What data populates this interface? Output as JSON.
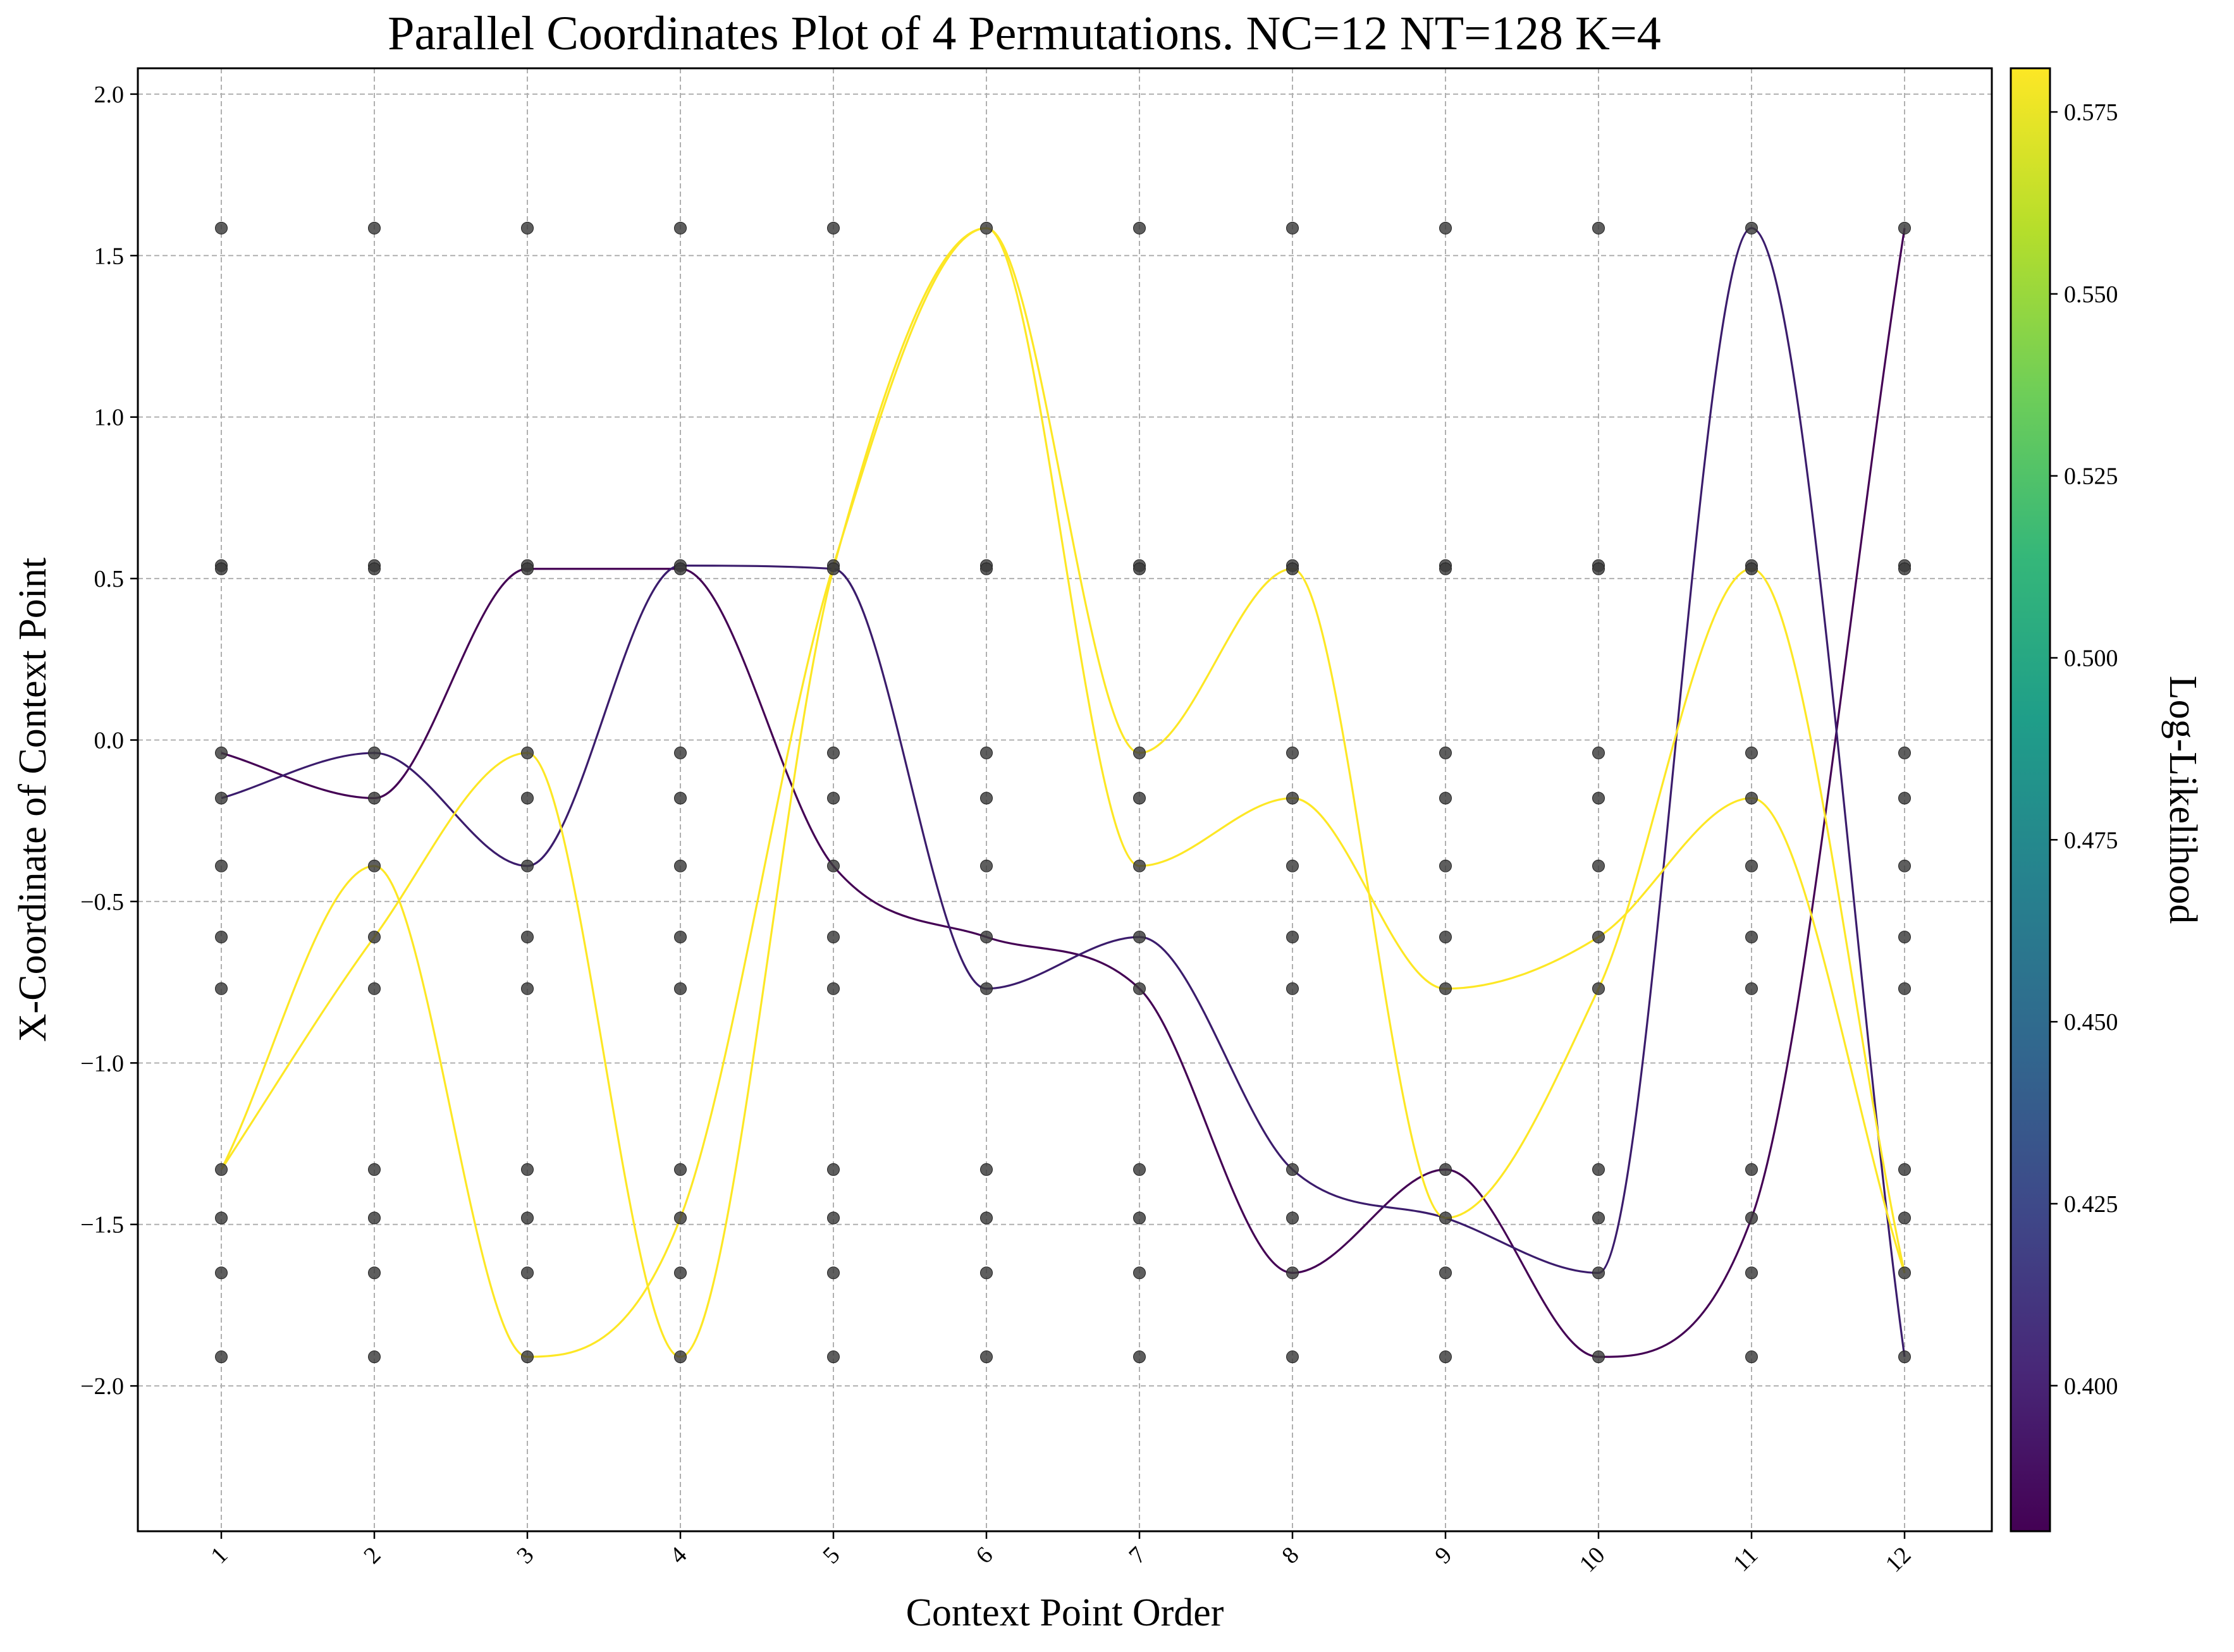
{
  "chart_data": {
    "type": "line",
    "title": "Parallel Coordinates Plot of 4 Permutations. NC=12 NT=128 K=4",
    "xlabel": "Context Point Order",
    "ylabel": "X-Coordinate of Context Point",
    "x_ticks": [
      "1",
      "2",
      "3",
      "4",
      "5",
      "6",
      "7",
      "8",
      "9",
      "10",
      "11",
      "12"
    ],
    "y_ticks": [
      "2.0",
      "1.5",
      "1.0",
      "0.5",
      "0.0",
      "−0.5",
      "−1.0",
      "−1.5",
      "−2.0"
    ],
    "y_tick_values": [
      2.0,
      1.5,
      1.0,
      0.5,
      0.0,
      -0.5,
      -1.0,
      -1.5,
      -2.0
    ],
    "ylim": [
      -2.45,
      2.08
    ],
    "grid": true,
    "context_points": [
      1.585,
      0.54,
      0.53,
      -0.04,
      -0.18,
      -0.39,
      -0.61,
      -0.77,
      -1.33,
      -1.48,
      -1.65,
      -1.91
    ],
    "colorbar": {
      "label": "Log-Likelihood",
      "range": [
        0.38,
        0.581
      ],
      "ticks": [
        "0.575",
        "0.550",
        "0.525",
        "0.500",
        "0.475",
        "0.450",
        "0.425",
        "0.400"
      ],
      "tick_values": [
        0.575,
        0.55,
        0.525,
        0.5,
        0.475,
        0.45,
        0.425,
        0.4
      ],
      "colormap": [
        "#440154",
        "#482878",
        "#3e4989",
        "#31688e",
        "#26828e",
        "#1f9e89",
        "#35b779",
        "#6ece58",
        "#b5de2b",
        "#fde725"
      ]
    },
    "series": [
      {
        "log_likelihood": 0.381,
        "color": "#440154",
        "values": [
          -0.04,
          -0.18,
          0.53,
          0.53,
          -0.39,
          -0.61,
          -0.77,
          -1.65,
          -1.33,
          -1.91,
          -1.48,
          1.585
        ]
      },
      {
        "log_likelihood": 0.405,
        "color": "#3b1c6c",
        "values": [
          -0.18,
          -0.04,
          -0.39,
          0.54,
          0.53,
          -0.77,
          -0.61,
          -1.33,
          -1.48,
          -1.65,
          1.585,
          -1.91
        ]
      },
      {
        "log_likelihood": 0.58,
        "color": "#fde725",
        "values": [
          -1.33,
          -0.61,
          -0.04,
          -1.91,
          0.53,
          1.585,
          -0.39,
          -0.18,
          -0.77,
          -0.61,
          -0.18,
          -1.65
        ]
      },
      {
        "log_likelihood": 0.58,
        "color": "#fde725",
        "values": [
          -1.33,
          -0.39,
          -1.91,
          -1.48,
          0.54,
          1.585,
          -0.04,
          0.53,
          -1.48,
          -0.77,
          0.53,
          -1.65
        ]
      }
    ]
  }
}
